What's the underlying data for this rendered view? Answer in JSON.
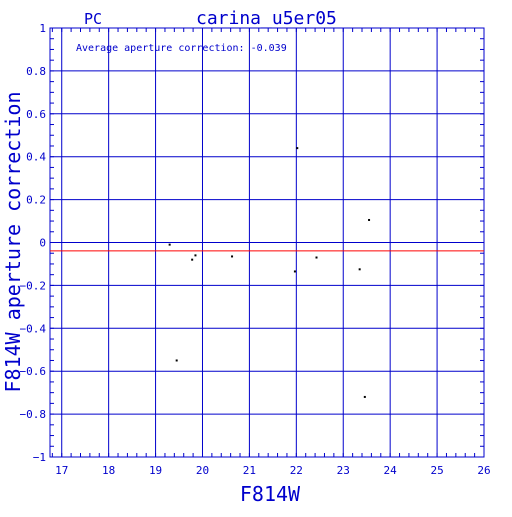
{
  "colors": {
    "axis": "#0000cc",
    "grid": "#0000cc",
    "text": "#0000cc",
    "points": "#000000",
    "reference_line": "#ff0000",
    "background": "#ffffff"
  },
  "chart_data": {
    "type": "scatter",
    "title": "carina_u5er05",
    "corner_label": "PC",
    "annotation": "Average aperture correction: -0.039",
    "xlabel": "F814W",
    "ylabel": "F814W aperture correction",
    "xlim": [
      16.75,
      26
    ],
    "ylim": [
      -1,
      1
    ],
    "x_ticks": [
      17,
      18,
      19,
      20,
      21,
      22,
      23,
      24,
      25,
      26
    ],
    "y_ticks": [
      -1,
      -0.8,
      -0.6,
      -0.4,
      -0.2,
      0,
      0.2,
      0.4,
      0.6,
      0.8,
      1
    ],
    "y_tick_labels": [
      "−1",
      "−0.8",
      "−0.6",
      "−0.4",
      "−0.2",
      "0",
      "0.2",
      "0.4",
      "0.6",
      "0.8",
      "1"
    ],
    "grid": true,
    "reference_line": {
      "y": -0.039
    },
    "series": [
      {
        "points": [
          {
            "x": 19.3,
            "y": -0.01
          },
          {
            "x": 19.45,
            "y": -0.55
          },
          {
            "x": 19.78,
            "y": -0.08
          },
          {
            "x": 19.85,
            "y": -0.06
          },
          {
            "x": 20.63,
            "y": -0.065
          },
          {
            "x": 21.97,
            "y": -0.135
          },
          {
            "x": 22.02,
            "y": 0.44
          },
          {
            "x": 22.43,
            "y": -0.07
          },
          {
            "x": 23.35,
            "y": -0.125
          },
          {
            "x": 23.46,
            "y": -0.72
          },
          {
            "x": 23.55,
            "y": 0.105
          }
        ]
      }
    ]
  }
}
